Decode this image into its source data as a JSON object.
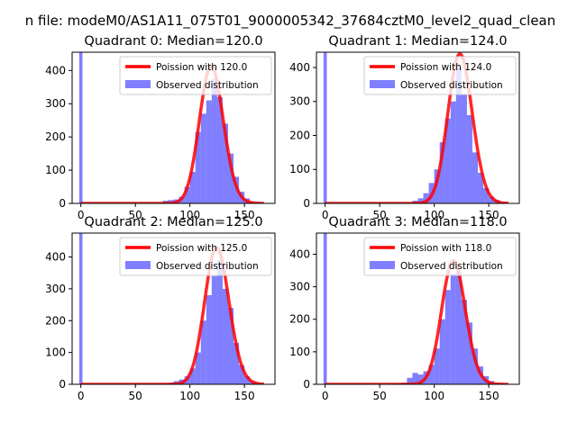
{
  "figure": {
    "suptitle": "n file: modeM0/AS1A11_075T01_9000005342_37684cztM0_level2_quad_clean"
  },
  "chart_data": [
    {
      "type": "bar",
      "title": "Quadrant 0: Median=120.0",
      "xlim": [
        -8,
        178
      ],
      "ylim": [
        0,
        455
      ],
      "xticks": [
        "0",
        "50",
        "100",
        "150"
      ],
      "yticks": [
        "0",
        "100",
        "200",
        "300",
        "400"
      ],
      "legend": [
        "Poission with 120.0",
        "Observed distribution"
      ],
      "legend_position": "upper right",
      "median": 120,
      "bar_width": 5,
      "zero_bar": 455,
      "bars": [
        [
          70,
          2
        ],
        [
          75,
          8
        ],
        [
          80,
          10
        ],
        [
          85,
          12
        ],
        [
          90,
          20
        ],
        [
          95,
          50
        ],
        [
          100,
          95
        ],
        [
          105,
          215
        ],
        [
          110,
          270
        ],
        [
          115,
          310
        ],
        [
          120,
          375
        ],
        [
          125,
          320
        ],
        [
          130,
          240
        ],
        [
          135,
          150
        ],
        [
          140,
          80
        ],
        [
          145,
          35
        ],
        [
          150,
          15
        ],
        [
          155,
          6
        ],
        [
          160,
          3
        ]
      ]
    },
    {
      "type": "bar",
      "title": "Quadrant 1: Median=124.0",
      "xlim": [
        -8,
        178
      ],
      "ylim": [
        0,
        445
      ],
      "xticks": [
        "0",
        "50",
        "100",
        "150"
      ],
      "yticks": [
        "0",
        "100",
        "200",
        "300",
        "400"
      ],
      "legend": [
        "Poission with 124.0",
        "Observed distribution"
      ],
      "legend_position": "upper right",
      "median": 124,
      "bar_width": 5,
      "zero_bar": 445,
      "bars": [
        [
          75,
          2
        ],
        [
          80,
          8
        ],
        [
          85,
          15
        ],
        [
          90,
          30
        ],
        [
          95,
          60
        ],
        [
          100,
          100
        ],
        [
          105,
          180
        ],
        [
          110,
          250
        ],
        [
          115,
          300
        ],
        [
          120,
          400
        ],
        [
          125,
          320
        ],
        [
          130,
          260
        ],
        [
          135,
          150
        ],
        [
          140,
          90
        ],
        [
          145,
          45
        ],
        [
          150,
          20
        ],
        [
          155,
          10
        ],
        [
          160,
          4
        ]
      ]
    },
    {
      "type": "bar",
      "title": "Quadrant 2: Median=125.0",
      "xlim": [
        -8,
        178
      ],
      "ylim": [
        0,
        475
      ],
      "xticks": [
        "0",
        "50",
        "100",
        "150"
      ],
      "yticks": [
        "0",
        "100",
        "200",
        "300",
        "400"
      ],
      "legend": [
        "Poission with 125.0",
        "Observed distribution"
      ],
      "legend_position": "upper right",
      "median": 125,
      "bar_width": 5,
      "zero_bar": 475,
      "bars": [
        [
          75,
          2
        ],
        [
          80,
          5
        ],
        [
          85,
          10
        ],
        [
          90,
          15
        ],
        [
          95,
          25
        ],
        [
          100,
          50
        ],
        [
          105,
          100
        ],
        [
          110,
          200
        ],
        [
          115,
          280
        ],
        [
          120,
          340
        ],
        [
          125,
          390
        ],
        [
          130,
          300
        ],
        [
          135,
          240
        ],
        [
          140,
          130
        ],
        [
          145,
          60
        ],
        [
          150,
          25
        ],
        [
          155,
          10
        ],
        [
          160,
          5
        ]
      ]
    },
    {
      "type": "bar",
      "title": "Quadrant 3: Median=118.0",
      "xlim": [
        -8,
        178
      ],
      "ylim": [
        0,
        465
      ],
      "xticks": [
        "0",
        "50",
        "100",
        "150"
      ],
      "yticks": [
        "0",
        "100",
        "200",
        "300",
        "400"
      ],
      "legend": [
        "Poission with 118.0",
        "Observed distribution"
      ],
      "legend_position": "upper right",
      "median": 118,
      "bar_width": 5,
      "zero_bar": 465,
      "bars": [
        [
          70,
          5
        ],
        [
          75,
          20
        ],
        [
          80,
          35
        ],
        [
          85,
          30
        ],
        [
          90,
          40
        ],
        [
          95,
          60
        ],
        [
          100,
          110
        ],
        [
          105,
          200
        ],
        [
          110,
          290
        ],
        [
          115,
          340
        ],
        [
          120,
          345
        ],
        [
          125,
          260
        ],
        [
          130,
          190
        ],
        [
          135,
          110
        ],
        [
          140,
          55
        ],
        [
          145,
          25
        ],
        [
          150,
          10
        ],
        [
          155,
          4
        ],
        [
          160,
          2
        ]
      ]
    }
  ]
}
